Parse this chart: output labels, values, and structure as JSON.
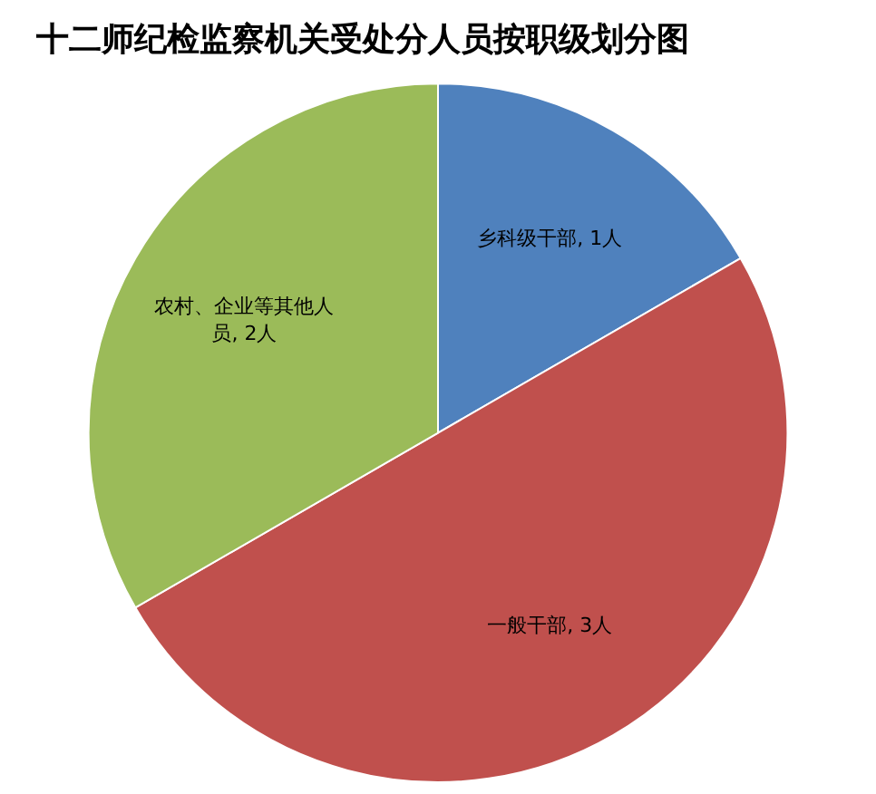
{
  "chart_data": {
    "type": "pie",
    "title": "十二师纪检监察机关受处分人员按职级划分图",
    "categories": [
      "乡科级干部",
      "一般干部",
      "农村、企业等其他人员"
    ],
    "values": [
      1,
      3,
      2
    ],
    "colors": [
      "#4f81bd",
      "#c0504d",
      "#9bbb59"
    ],
    "value_labels": [
      "1人",
      "3人",
      "2人"
    ],
    "legend": false
  }
}
